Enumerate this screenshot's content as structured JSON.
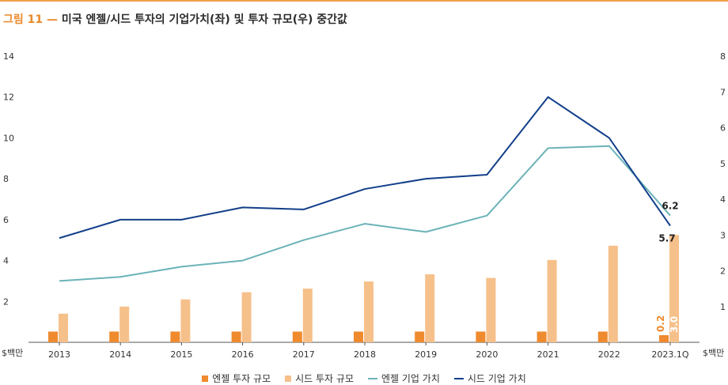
{
  "title": {
    "fig_label": "그림 11 —",
    "text": "미국 엔젤/시드 투자의 기업가치(좌) 및 투자 규모(우) 중간값"
  },
  "colors": {
    "accent": "#e98a2c",
    "angel_bar": "#ef8a2e",
    "seed_bar": "#f6c08a",
    "angel_line": "#6bb3b8",
    "seed_line": "#123f8a"
  },
  "legend": {
    "angel_investment": "엔젤 투자 규모",
    "seed_investment": "시드 투자 규모",
    "angel_valuation": "엔젤 기업 가치",
    "seed_valuation": "시드 기업 가치"
  },
  "chart_data": {
    "type": "bar",
    "categories": [
      "2013",
      "2014",
      "2015",
      "2016",
      "2017",
      "2018",
      "2019",
      "2020",
      "2021",
      "2022",
      "2023.1Q"
    ],
    "left_axis": {
      "range": [
        0,
        14
      ],
      "ticks": [
        "2",
        "4",
        "6",
        "8",
        "10",
        "12",
        "14"
      ],
      "unit_label": "$백만"
    },
    "right_axis": {
      "range": [
        0,
        8
      ],
      "ticks": [
        "1",
        "2",
        "3",
        "4",
        "5",
        "6",
        "7",
        "8"
      ],
      "unit_label": "$백만"
    },
    "series": [
      {
        "name": "엔젤 투자 규모",
        "type": "bar",
        "axis": "right",
        "values": [
          0.3,
          0.3,
          0.3,
          0.3,
          0.3,
          0.3,
          0.3,
          0.3,
          0.3,
          0.3,
          0.2
        ]
      },
      {
        "name": "시드 투자 규모",
        "type": "bar",
        "axis": "right",
        "values": [
          0.8,
          1.0,
          1.2,
          1.4,
          1.5,
          1.7,
          1.9,
          1.8,
          2.3,
          2.7,
          3.0
        ]
      },
      {
        "name": "엔젤 기업 가치",
        "type": "line",
        "axis": "left",
        "values": [
          3.0,
          3.2,
          3.7,
          4.0,
          5.0,
          5.8,
          5.4,
          6.2,
          9.5,
          9.6,
          6.2
        ]
      },
      {
        "name": "시드 기업 가치",
        "type": "line",
        "axis": "left",
        "values": [
          5.1,
          6.0,
          6.0,
          6.6,
          6.5,
          7.5,
          8.0,
          8.2,
          12.0,
          10.0,
          5.7
        ]
      }
    ],
    "annotations": {
      "angel_valuation_last": "6.2",
      "seed_valuation_last": "5.7",
      "angel_investment_last": "0.2",
      "seed_investment_last": "3.0"
    },
    "grid": false,
    "legend_position": "bottom"
  }
}
